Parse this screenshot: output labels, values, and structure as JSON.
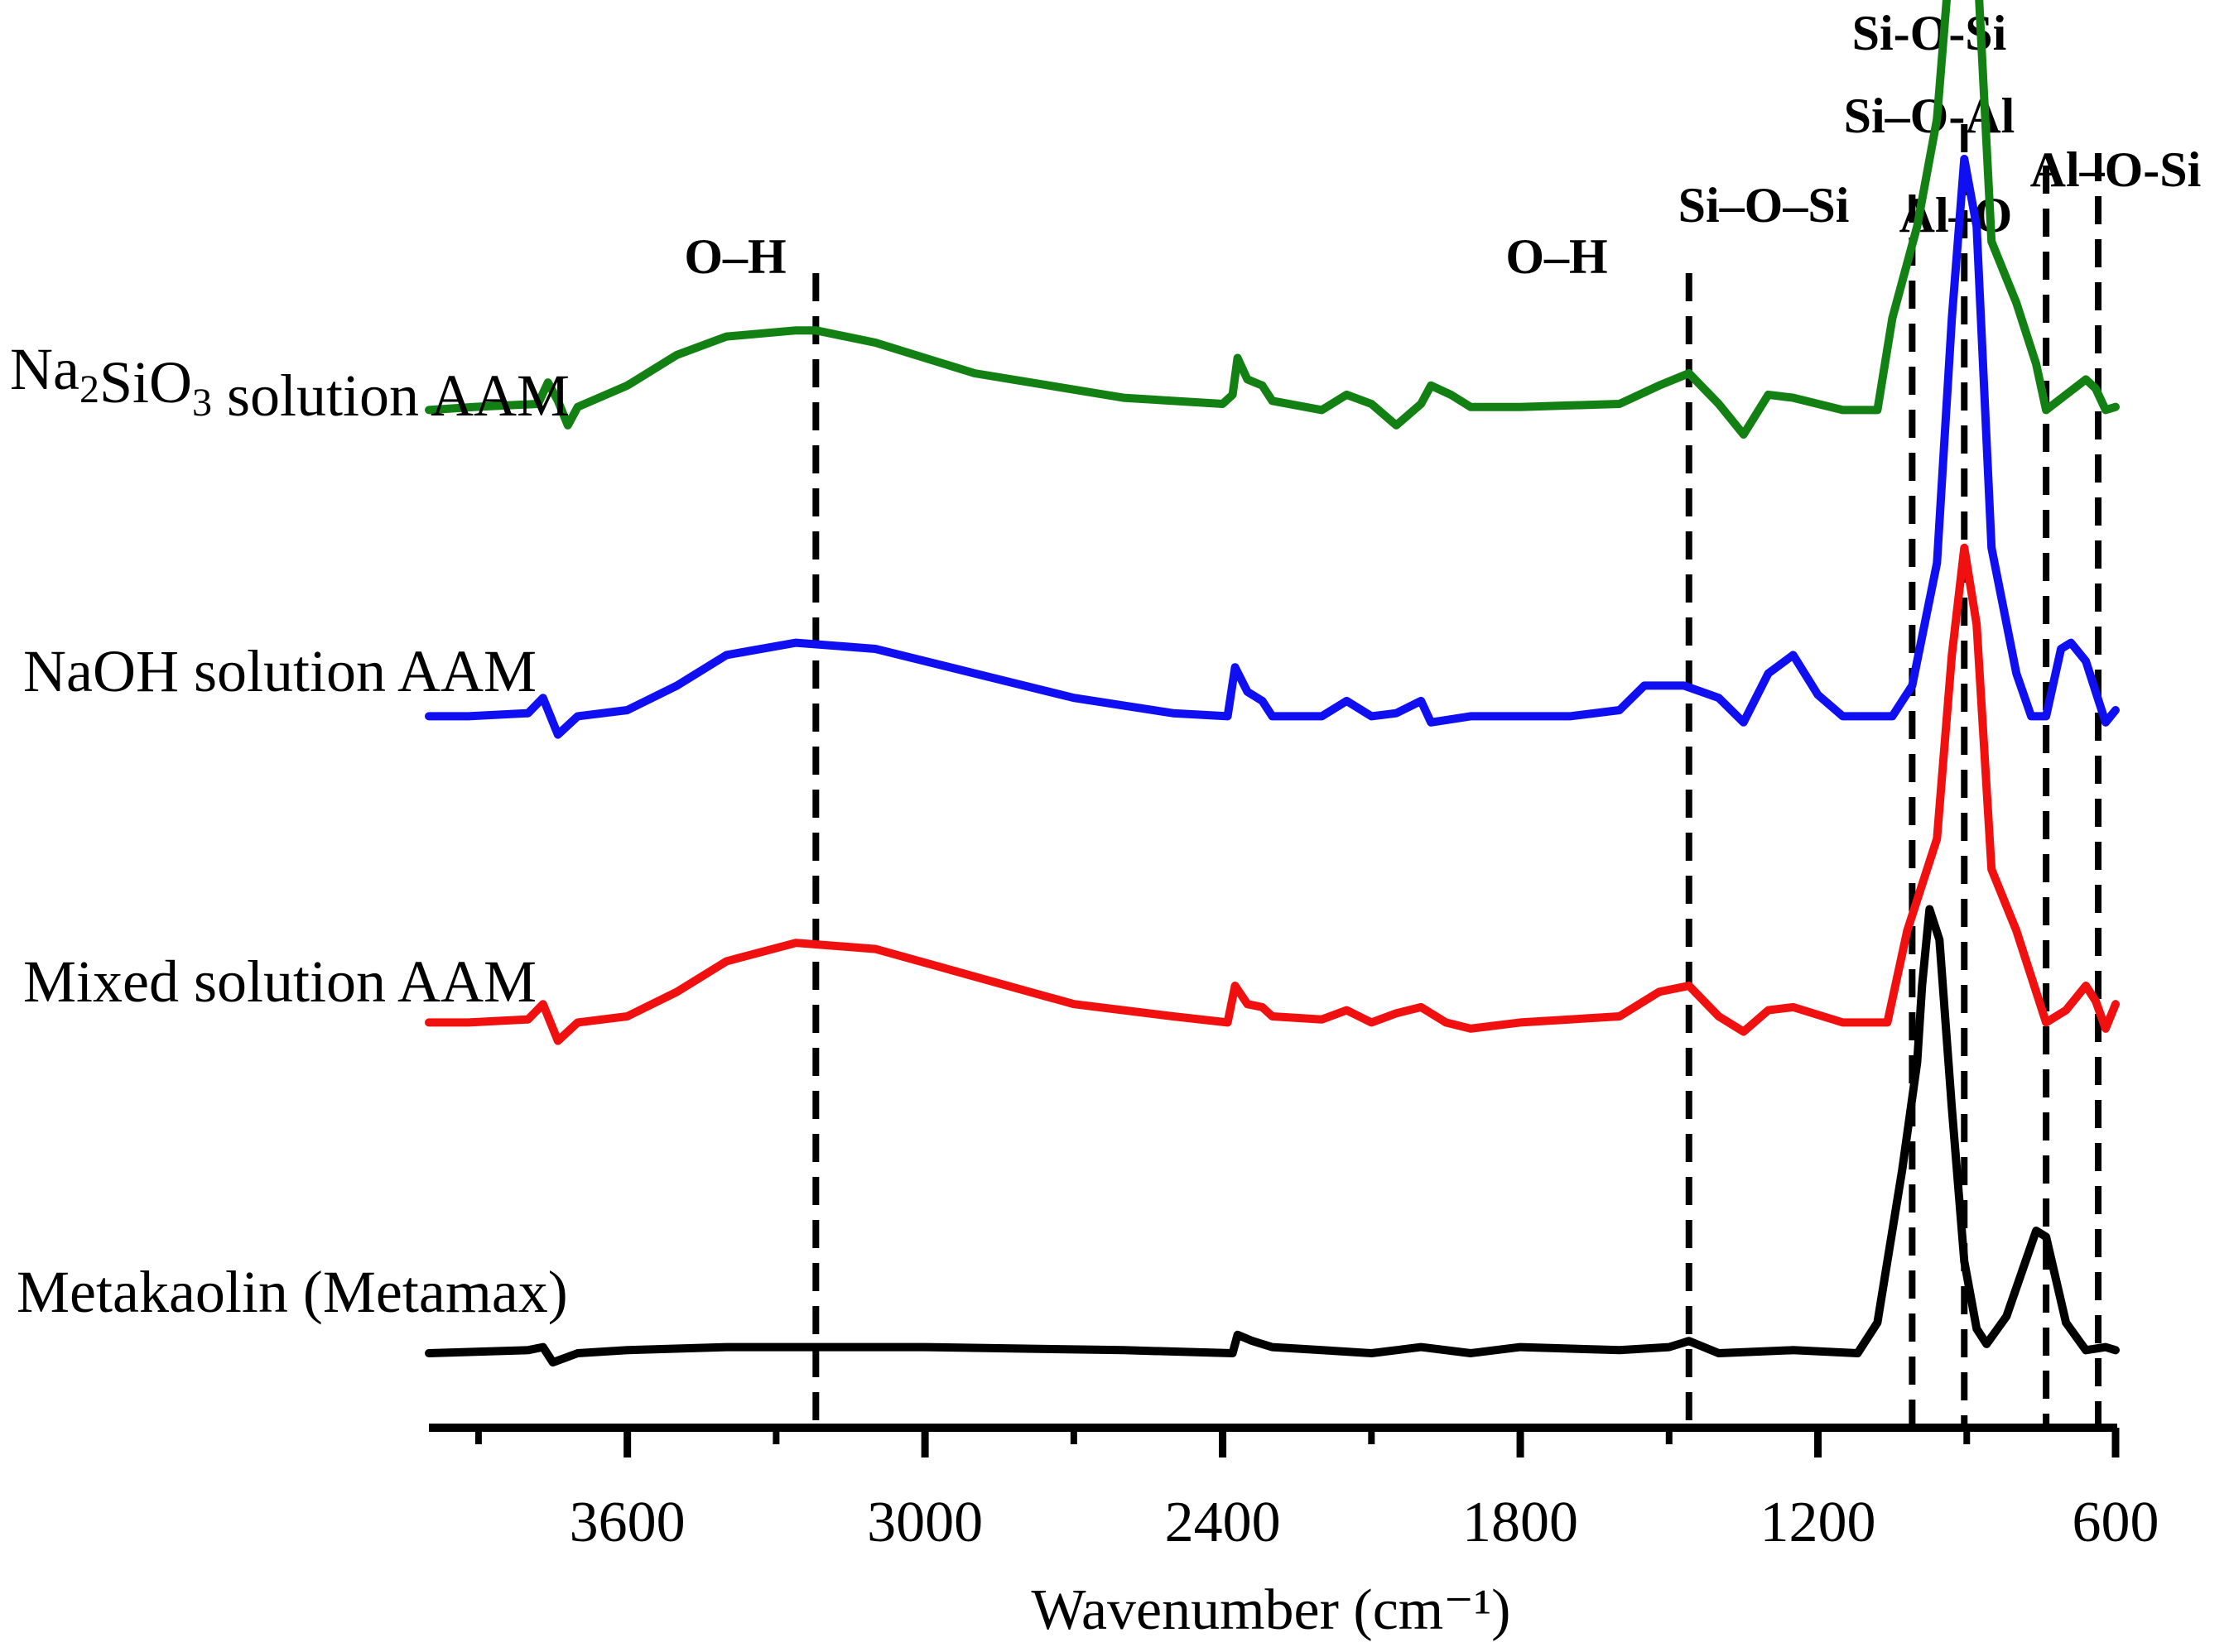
{
  "chart_data": {
    "type": "line",
    "title": "",
    "xlabel": "Wavenumber (cm⁻¹)",
    "ylabel": "",
    "xlim": [
      4000,
      600
    ],
    "x_reversed": true,
    "y_axis_shown": false,
    "grid": false,
    "ticks": [
      {
        "value": 3600,
        "label": "3600"
      },
      {
        "value": 3000,
        "label": "3000"
      },
      {
        "value": 2400,
        "label": "2400"
      },
      {
        "value": 1800,
        "label": "1800"
      },
      {
        "value": 1200,
        "label": "1200"
      },
      {
        "value": 600,
        "label": "600"
      }
    ],
    "minor_ticks": [
      3900,
      3300,
      2700,
      2100,
      1500,
      900
    ],
    "band_lines": [
      {
        "x": 3220,
        "labels": [
          "O–H"
        ]
      },
      {
        "x": 1460,
        "labels": [
          "O–H"
        ]
      },
      {
        "x": 1010,
        "labels": [
          "Si–O–Si"
        ]
      },
      {
        "x": 905,
        "labels": [
          "Si-O-Si",
          "Si–O-Al",
          "Al–O"
        ]
      },
      {
        "x": 740,
        "labels": []
      },
      {
        "x": 635,
        "labels": [
          "Al–O-Si"
        ]
      }
    ],
    "series": [
      {
        "name": "Na₂SiO₃ solution AAM",
        "name_main": "Na",
        "name_sub1": "2",
        "name_mid": "SiO",
        "name_sub2": "3",
        "name_tail": " solution AAM",
        "color": "#138013",
        "offset": 3.08,
        "points": [
          [
            4000,
            0
          ],
          [
            3910,
            0.01
          ],
          [
            3780,
            0.02
          ],
          [
            3760,
            0.09
          ],
          [
            3740,
            0.03
          ],
          [
            3720,
            -0.05
          ],
          [
            3700,
            0.01
          ],
          [
            3600,
            0.08
          ],
          [
            3500,
            0.18
          ],
          [
            3400,
            0.24
          ],
          [
            3260,
            0.26
          ],
          [
            3220,
            0.26
          ],
          [
            3100,
            0.22
          ],
          [
            2900,
            0.12
          ],
          [
            2600,
            0.04
          ],
          [
            2400,
            0.02
          ],
          [
            2380,
            0.05
          ],
          [
            2370,
            0.17
          ],
          [
            2350,
            0.1
          ],
          [
            2320,
            0.08
          ],
          [
            2300,
            0.03
          ],
          [
            2200,
            0.0
          ],
          [
            2150,
            0.05
          ],
          [
            2100,
            0.02
          ],
          [
            2050,
            -0.05
          ],
          [
            2000,
            0.02
          ],
          [
            1980,
            0.08
          ],
          [
            1940,
            0.05
          ],
          [
            1900,
            0.01
          ],
          [
            1800,
            0.01
          ],
          [
            1600,
            0.02
          ],
          [
            1520,
            0.08
          ],
          [
            1460,
            0.12
          ],
          [
            1400,
            0.02
          ],
          [
            1350,
            -0.08
          ],
          [
            1300,
            0.05
          ],
          [
            1250,
            0.04
          ],
          [
            1150,
            0.0
          ],
          [
            1080,
            0.0
          ],
          [
            1050,
            0.3
          ],
          [
            1000,
            0.6
          ],
          [
            960,
            0.95
          ],
          [
            930,
            1.55
          ],
          [
            905,
            1.7
          ],
          [
            880,
            1.5
          ],
          [
            850,
            0.55
          ],
          [
            800,
            0.35
          ],
          [
            760,
            0.15
          ],
          [
            740,
            0.0
          ],
          [
            700,
            0.05
          ],
          [
            660,
            0.1
          ],
          [
            640,
            0.07
          ],
          [
            620,
            0.0
          ],
          [
            600,
            0.01
          ]
        ]
      },
      {
        "name": "NaOH solution AAM",
        "color": "#0f0ff2",
        "offset": 2.08,
        "points": [
          [
            4000,
            0
          ],
          [
            3920,
            0.0
          ],
          [
            3800,
            0.01
          ],
          [
            3770,
            0.06
          ],
          [
            3740,
            -0.06
          ],
          [
            3700,
            0.0
          ],
          [
            3600,
            0.02
          ],
          [
            3500,
            0.1
          ],
          [
            3400,
            0.2
          ],
          [
            3260,
            0.24
          ],
          [
            3100,
            0.22
          ],
          [
            2900,
            0.14
          ],
          [
            2700,
            0.06
          ],
          [
            2500,
            0.01
          ],
          [
            2390,
            0.0
          ],
          [
            2375,
            0.16
          ],
          [
            2350,
            0.08
          ],
          [
            2320,
            0.05
          ],
          [
            2300,
            0.0
          ],
          [
            2200,
            0.0
          ],
          [
            2150,
            0.05
          ],
          [
            2100,
            0.0
          ],
          [
            2050,
            0.01
          ],
          [
            2000,
            0.05
          ],
          [
            1980,
            -0.02
          ],
          [
            1900,
            0.0
          ],
          [
            1700,
            0.0
          ],
          [
            1600,
            0.02
          ],
          [
            1550,
            0.1
          ],
          [
            1470,
            0.1
          ],
          [
            1400,
            0.06
          ],
          [
            1350,
            -0.02
          ],
          [
            1300,
            0.14
          ],
          [
            1250,
            0.2
          ],
          [
            1200,
            0.07
          ],
          [
            1150,
            0.0
          ],
          [
            1050,
            0.0
          ],
          [
            1010,
            0.1
          ],
          [
            960,
            0.5
          ],
          [
            930,
            1.3
          ],
          [
            905,
            1.82
          ],
          [
            880,
            1.6
          ],
          [
            850,
            0.55
          ],
          [
            800,
            0.14
          ],
          [
            770,
            0.0
          ],
          [
            740,
            0.0
          ],
          [
            710,
            0.22
          ],
          [
            690,
            0.24
          ],
          [
            660,
            0.18
          ],
          [
            640,
            0.08
          ],
          [
            620,
            -0.02
          ],
          [
            600,
            0.02
          ]
        ]
      },
      {
        "name": "Mixed solution AAM",
        "color": "#f01010",
        "offset": 1.08,
        "points": [
          [
            4000,
            0
          ],
          [
            3920,
            0.0
          ],
          [
            3800,
            0.01
          ],
          [
            3770,
            0.06
          ],
          [
            3740,
            -0.06
          ],
          [
            3700,
            0.0
          ],
          [
            3600,
            0.02
          ],
          [
            3500,
            0.1
          ],
          [
            3400,
            0.2
          ],
          [
            3260,
            0.26
          ],
          [
            3100,
            0.24
          ],
          [
            2900,
            0.15
          ],
          [
            2700,
            0.06
          ],
          [
            2500,
            0.02
          ],
          [
            2390,
            0.0
          ],
          [
            2375,
            0.12
          ],
          [
            2350,
            0.06
          ],
          [
            2320,
            0.05
          ],
          [
            2300,
            0.02
          ],
          [
            2200,
            0.01
          ],
          [
            2150,
            0.04
          ],
          [
            2100,
            0.0
          ],
          [
            2050,
            0.03
          ],
          [
            2000,
            0.05
          ],
          [
            1950,
            0.0
          ],
          [
            1900,
            -0.02
          ],
          [
            1800,
            0.0
          ],
          [
            1600,
            0.02
          ],
          [
            1520,
            0.1
          ],
          [
            1460,
            0.12
          ],
          [
            1400,
            0.02
          ],
          [
            1350,
            -0.03
          ],
          [
            1300,
            0.04
          ],
          [
            1250,
            0.05
          ],
          [
            1150,
            0.0
          ],
          [
            1060,
            0.0
          ],
          [
            1020,
            0.3
          ],
          [
            960,
            0.6
          ],
          [
            930,
            1.2
          ],
          [
            905,
            1.55
          ],
          [
            880,
            1.3
          ],
          [
            850,
            0.5
          ],
          [
            800,
            0.3
          ],
          [
            760,
            0.1
          ],
          [
            740,
            0.0
          ],
          [
            700,
            0.04
          ],
          [
            660,
            0.12
          ],
          [
            640,
            0.07
          ],
          [
            620,
            -0.02
          ],
          [
            600,
            0.06
          ]
        ]
      },
      {
        "name": "Metakaolin (Metamax)",
        "color": "#000000",
        "offset": 0.0,
        "points": [
          [
            4000,
            0
          ],
          [
            3800,
            0.01
          ],
          [
            3770,
            0.02
          ],
          [
            3750,
            -0.03
          ],
          [
            3700,
            0.0
          ],
          [
            3600,
            0.01
          ],
          [
            3400,
            0.02
          ],
          [
            3000,
            0.02
          ],
          [
            2600,
            0.01
          ],
          [
            2380,
            0.0
          ],
          [
            2370,
            0.06
          ],
          [
            2340,
            0.04
          ],
          [
            2300,
            0.02
          ],
          [
            2200,
            0.01
          ],
          [
            2100,
            0.0
          ],
          [
            2050,
            0.01
          ],
          [
            2000,
            0.02
          ],
          [
            1900,
            0.0
          ],
          [
            1800,
            0.02
          ],
          [
            1600,
            0.01
          ],
          [
            1500,
            0.02
          ],
          [
            1460,
            0.04
          ],
          [
            1400,
            0.0
          ],
          [
            1250,
            0.01
          ],
          [
            1120,
            0.0
          ],
          [
            1080,
            0.1
          ],
          [
            1030,
            0.6
          ],
          [
            1000,
            0.95
          ],
          [
            990,
            1.2
          ],
          [
            975,
            1.45
          ],
          [
            955,
            1.35
          ],
          [
            930,
            0.8
          ],
          [
            905,
            0.3
          ],
          [
            880,
            0.08
          ],
          [
            860,
            0.03
          ],
          [
            820,
            0.12
          ],
          [
            760,
            0.4
          ],
          [
            740,
            0.38
          ],
          [
            700,
            0.1
          ],
          [
            660,
            0.01
          ],
          [
            620,
            0.02
          ],
          [
            600,
            0.01
          ]
        ]
      }
    ]
  }
}
